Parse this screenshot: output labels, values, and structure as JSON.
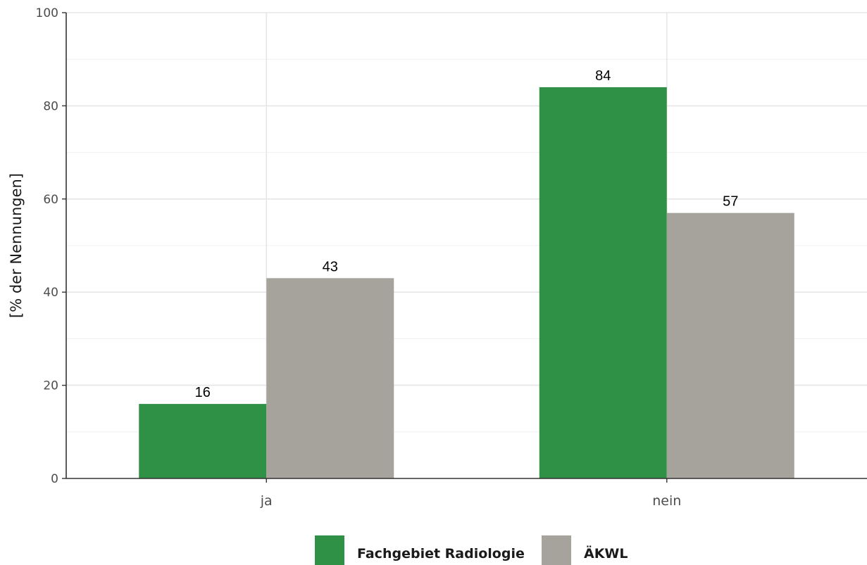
{
  "chart_data": {
    "type": "bar",
    "categories": [
      "ja",
      "nein"
    ],
    "series": [
      {
        "name": "Fachgebiet Radiologie",
        "values": [
          16,
          84
        ],
        "color": "#2e9145"
      },
      {
        "name": "ÄKWL",
        "values": [
          43,
          57
        ],
        "color": "#a6a39c"
      }
    ],
    "value_labels": [
      [
        "16",
        "84"
      ],
      [
        "43",
        "57"
      ]
    ],
    "title": "",
    "xlabel": "",
    "ylabel": "[% der Nennungen]",
    "ylim": [
      0,
      100
    ],
    "yticks": [
      0,
      20,
      40,
      60,
      80,
      100
    ],
    "ytick_labels": [
      "0",
      "20",
      "40",
      "60",
      "80",
      "100"
    ],
    "grid": true,
    "legend_position": "bottom"
  }
}
